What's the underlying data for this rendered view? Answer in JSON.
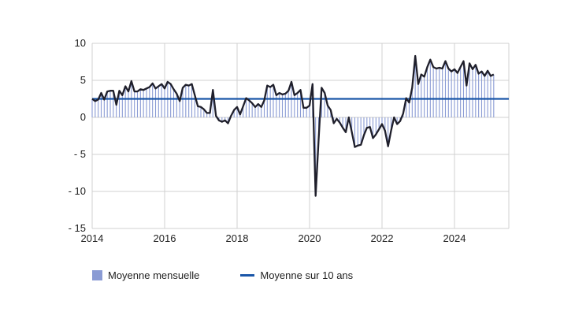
{
  "chart_data": {
    "type": "bar",
    "x_start": 2014.0,
    "x_step": 0.08333,
    "xlim": [
      2014,
      2025.5
    ],
    "ylim": [
      -15,
      10
    ],
    "x_ticks": [
      2014,
      2016,
      2018,
      2020,
      2022,
      2024
    ],
    "y_ticks": [
      10,
      5,
      0,
      -5,
      -10,
      -15
    ],
    "y_tick_labels": [
      "10",
      "5",
      "0",
      "- 5",
      "- 10",
      "- 15"
    ],
    "grid": true,
    "legend_position": "bottom-left",
    "series": [
      {
        "name": "Moyenne mensuelle",
        "kind": "bar+line",
        "bar_color": "#8a9bd4",
        "line_color": "#1f1f2b",
        "values": [
          2.5,
          2.2,
          2.4,
          3.3,
          2.4,
          3.5,
          3.6,
          3.6,
          1.7,
          3.6,
          3.0,
          4.2,
          3.5,
          4.9,
          3.5,
          3.5,
          3.8,
          3.7,
          3.9,
          4.1,
          4.6,
          3.9,
          4.2,
          4.5,
          3.9,
          4.8,
          4.5,
          3.8,
          3.2,
          2.2,
          4.0,
          4.4,
          4.3,
          4.5,
          3.0,
          1.5,
          1.4,
          1.1,
          0.6,
          0.6,
          3.7,
          0.2,
          -0.4,
          -0.6,
          -0.4,
          -0.8,
          0.2,
          1.0,
          1.4,
          0.4,
          1.5,
          2.6,
          2.3,
          1.9,
          1.4,
          1.8,
          1.4,
          2.3,
          4.3,
          4.1,
          4.4,
          3.0,
          3.3,
          3.1,
          3.2,
          3.6,
          4.8,
          3.0,
          3.3,
          3.7,
          1.3,
          1.3,
          1.6,
          4.5,
          -10.6,
          -3.0,
          4.0,
          3.3,
          1.6,
          1.0,
          -0.8,
          -0.2,
          -0.7,
          -1.4,
          -2.0,
          0.0,
          -2.0,
          -4.0,
          -3.8,
          -3.7,
          -2.4,
          -1.4,
          -1.3,
          -2.8,
          -2.3,
          -1.6,
          -0.9,
          -1.8,
          -3.9,
          -1.8,
          0.0,
          -0.9,
          -0.5,
          0.5,
          2.6,
          2.0,
          4.0,
          8.3,
          4.5,
          5.8,
          5.5,
          6.8,
          7.8,
          6.8,
          6.6,
          6.7,
          6.6,
          7.6,
          6.6,
          6.2,
          6.5,
          6.0,
          6.8,
          7.6,
          4.3,
          7.3,
          6.5,
          7.1,
          5.9,
          6.2,
          5.6,
          6.3,
          5.6,
          5.8
        ]
      },
      {
        "name": "Moyenne sur 10 ans",
        "kind": "hline",
        "color": "#1a56a8",
        "value": 2.5
      }
    ]
  }
}
